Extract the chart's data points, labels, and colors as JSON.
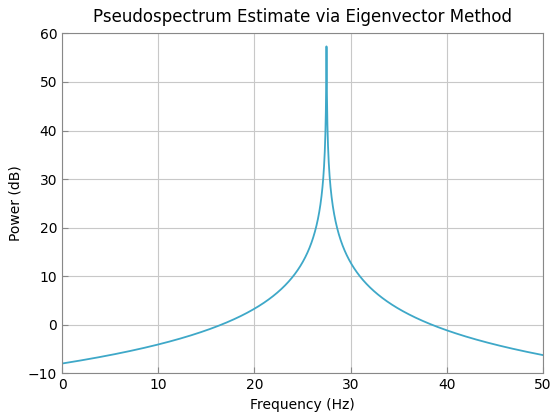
{
  "title": "Pseudospectrum Estimate via Eigenvector Method",
  "xlabel": "Frequency (Hz)",
  "ylabel": "Power (dB)",
  "xlim": [
    0,
    50
  ],
  "ylim": [
    -10,
    60
  ],
  "xticks": [
    0,
    10,
    20,
    30,
    40,
    50
  ],
  "yticks": [
    -10,
    0,
    10,
    20,
    30,
    40,
    50,
    60
  ],
  "line_color": "#3ea8c8",
  "line_width": 1.3,
  "peak_freq": 27.5,
  "peak_power_db": 58.0,
  "noise_floor_db": -8.0,
  "background_color": "#ffffff",
  "grid_color": "#c8c8c8",
  "title_fontsize": 12,
  "label_fontsize": 10,
  "tick_fontsize": 10
}
